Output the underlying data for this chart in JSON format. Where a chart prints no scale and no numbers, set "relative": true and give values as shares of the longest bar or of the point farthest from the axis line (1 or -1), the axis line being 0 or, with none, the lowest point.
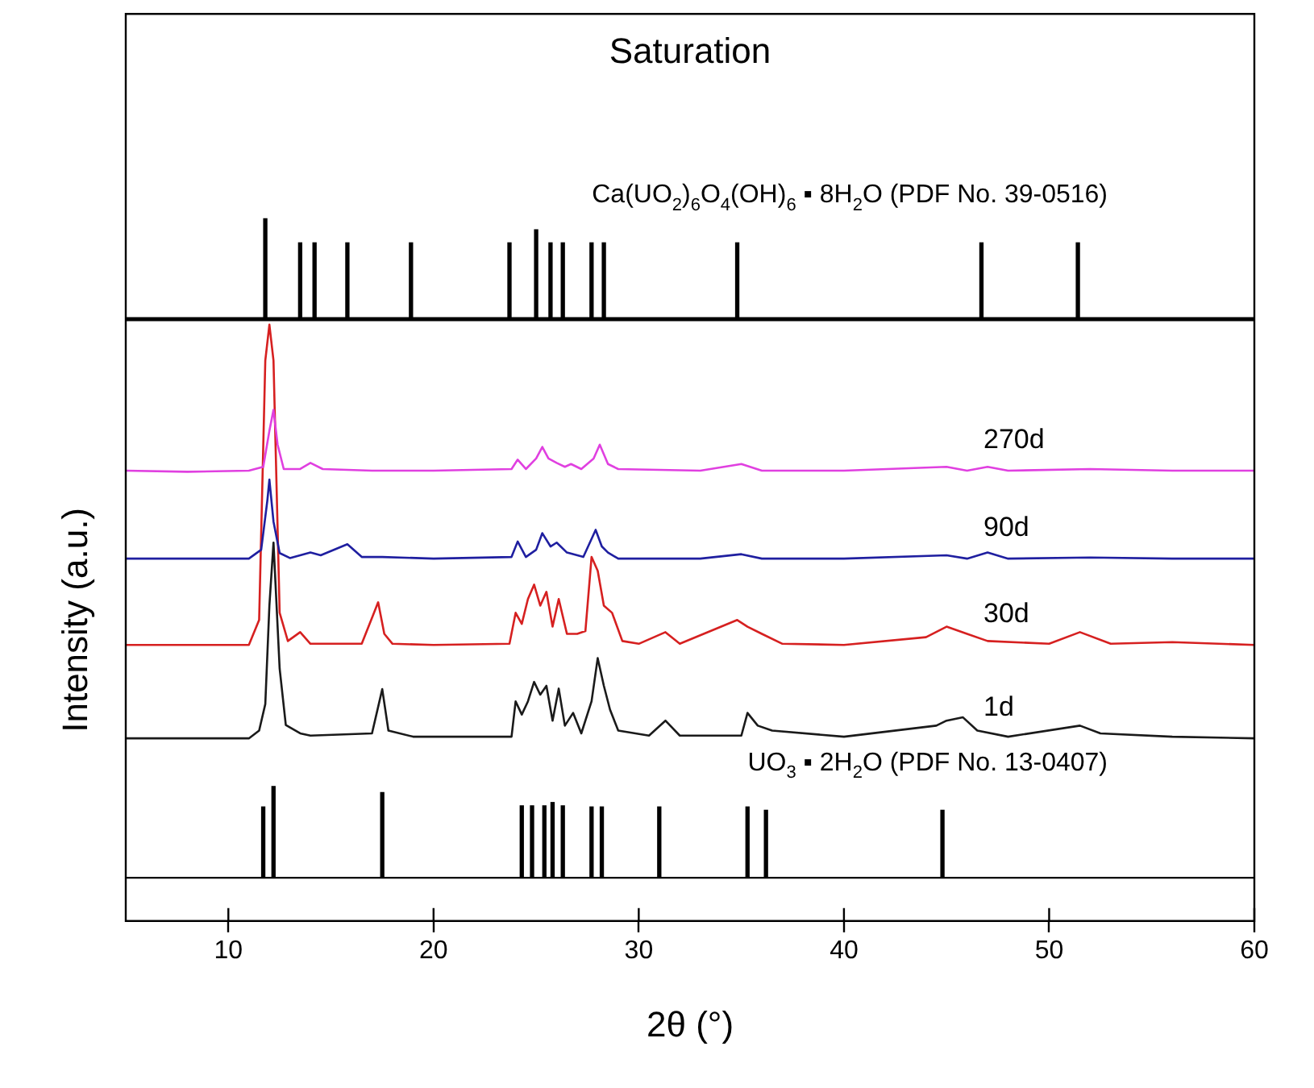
{
  "chart_data": [
    {
      "type": "bar",
      "title": "Saturation",
      "relative": true,
      "xlim": [
        5,
        60
      ],
      "tick_labels": false,
      "grid": false,
      "legend": false,
      "series": [
        {
          "name": "Ca(UO$_{2}$)$_{6}$O$_{4}$(OH)$_{6}$ ▪ 8H$_{2}$O (PDF No. 39-0516)",
          "color": "#000000",
          "x": [
            11.8,
            13.5,
            14.2,
            15.8,
            18.9,
            23.7,
            25.0,
            25.7,
            26.3,
            27.7,
            28.3,
            34.8,
            46.7,
            51.4
          ],
          "values": [
            1,
            0.76,
            0.76,
            0.76,
            0.76,
            0.76,
            0.89,
            0.76,
            0.76,
            0.76,
            0.76,
            0.76,
            0.76,
            0.76
          ]
        }
      ]
    },
    {
      "type": "line",
      "xlabel": "2θ (°)",
      "ylabel": "Intensity (a.u.)",
      "relative": true,
      "xlim": [
        5,
        60
      ],
      "xticks": [
        10,
        20,
        30,
        40,
        50,
        60
      ],
      "tick_labels": "x",
      "grid": false,
      "legend": false,
      "marker": "none",
      "line_style": "solid",
      "series": [
        {
          "name": "270d",
          "color": "#e040e0",
          "x": [
            5,
            8,
            11,
            11.7,
            12.0,
            12.2,
            12.4,
            12.7,
            13.5,
            14.0,
            14.6,
            17,
            20,
            23.8,
            24.1,
            24.5,
            25.0,
            25.3,
            25.6,
            26.0,
            26.4,
            26.7,
            27.2,
            27.8,
            28.1,
            28.5,
            29,
            33,
            35,
            36,
            40,
            45,
            46,
            47,
            48,
            52,
            56,
            60
          ],
          "values": [
            0.736,
            0.734,
            0.736,
            0.743,
            0.808,
            0.846,
            0.783,
            0.739,
            0.739,
            0.75,
            0.739,
            0.736,
            0.736,
            0.739,
            0.756,
            0.739,
            0.758,
            0.779,
            0.758,
            0.75,
            0.743,
            0.748,
            0.739,
            0.758,
            0.783,
            0.748,
            0.739,
            0.736,
            0.748,
            0.736,
            0.736,
            0.743,
            0.736,
            0.743,
            0.736,
            0.739,
            0.736,
            0.736
          ]
        },
        {
          "name": "90d",
          "color": "#1f1fa0",
          "x": [
            5,
            8,
            11,
            11.6,
            11.9,
            12.0,
            12.2,
            12.5,
            13,
            14.0,
            14.5,
            15.8,
            16.5,
            17.5,
            20,
            23.8,
            24.1,
            24.5,
            25.0,
            25.3,
            25.7,
            26.0,
            26.5,
            27.3,
            27.9,
            28.2,
            28.5,
            29,
            33,
            35,
            36,
            40,
            45,
            46,
            47,
            48,
            52,
            56,
            60
          ],
          "values": [
            0.577,
            0.577,
            0.577,
            0.593,
            0.682,
            0.72,
            0.644,
            0.587,
            0.578,
            0.588,
            0.583,
            0.603,
            0.58,
            0.58,
            0.577,
            0.58,
            0.608,
            0.58,
            0.593,
            0.623,
            0.599,
            0.606,
            0.588,
            0.58,
            0.629,
            0.599,
            0.588,
            0.577,
            0.577,
            0.585,
            0.577,
            0.577,
            0.583,
            0.577,
            0.588,
            0.577,
            0.579,
            0.577,
            0.577
          ]
        },
        {
          "name": "30d",
          "color": "#d62020",
          "x": [
            5,
            8,
            11,
            11.5,
            11.8,
            12.0,
            12.2,
            12.5,
            12.9,
            13.5,
            14,
            16.5,
            17.3,
            17.6,
            18,
            20,
            23.7,
            24.0,
            24.3,
            24.6,
            24.9,
            25.2,
            25.5,
            25.8,
            26.1,
            26.5,
            27.0,
            27.4,
            27.7,
            28.0,
            28.3,
            28.7,
            29.2,
            30,
            31.3,
            32,
            34.8,
            35.3,
            36,
            37,
            40,
            44,
            45,
            46,
            47,
            50,
            51.5,
            53,
            56,
            60
          ],
          "values": [
            0.421,
            0.421,
            0.421,
            0.466,
            0.935,
            1,
            0.935,
            0.479,
            0.428,
            0.444,
            0.423,
            0.423,
            0.498,
            0.441,
            0.423,
            0.421,
            0.423,
            0.479,
            0.459,
            0.504,
            0.53,
            0.492,
            0.517,
            0.454,
            0.504,
            0.441,
            0.441,
            0.446,
            0.58,
            0.555,
            0.492,
            0.479,
            0.428,
            0.423,
            0.444,
            0.423,
            0.466,
            0.454,
            0.441,
            0.423,
            0.421,
            0.435,
            0.454,
            0.441,
            0.428,
            0.423,
            0.444,
            0.423,
            0.426,
            0.421
          ]
        },
        {
          "name": "1d",
          "color": "#1a1a1a",
          "x": [
            5,
            8,
            11,
            11.5,
            11.8,
            12.0,
            12.2,
            12.5,
            12.8,
            13.5,
            14,
            17.0,
            17.5,
            17.8,
            19,
            23.8,
            24.0,
            24.3,
            24.6,
            24.9,
            25.2,
            25.5,
            25.8,
            26.1,
            26.4,
            26.8,
            27.2,
            27.7,
            28.0,
            28.3,
            28.6,
            29,
            30.5,
            31.3,
            32,
            35,
            35.3,
            35.8,
            36.5,
            40,
            44.5,
            45,
            45.8,
            46.5,
            48,
            51.5,
            52.5,
            56,
            60
          ],
          "values": [
            0.252,
            0.252,
            0.252,
            0.266,
            0.314,
            0.492,
            0.606,
            0.378,
            0.276,
            0.261,
            0.257,
            0.261,
            0.341,
            0.266,
            0.255,
            0.255,
            0.319,
            0.295,
            0.319,
            0.354,
            0.331,
            0.347,
            0.284,
            0.342,
            0.275,
            0.298,
            0.261,
            0.319,
            0.397,
            0.347,
            0.304,
            0.266,
            0.257,
            0.284,
            0.257,
            0.257,
            0.298,
            0.275,
            0.266,
            0.255,
            0.275,
            0.284,
            0.29,
            0.266,
            0.255,
            0.275,
            0.261,
            0.255,
            0.252
          ]
        },
        {
          "name": "UO$_{3}$ ▪ 2H$_{2}$O (PDF No. 13-0407)",
          "type": "bar",
          "color": "#000000",
          "x": [
            11.7,
            12.2,
            17.5,
            24.3,
            24.8,
            25.4,
            25.8,
            26.3,
            27.7,
            28.2,
            31.0,
            35.3,
            36.2,
            44.8
          ],
          "values": [
            0.128,
            0.165,
            0.154,
            0.13,
            0.13,
            0.13,
            0.136,
            0.13,
            0.128,
            0.128,
            0.128,
            0.128,
            0.122,
            0.122
          ]
        }
      ]
    }
  ]
}
